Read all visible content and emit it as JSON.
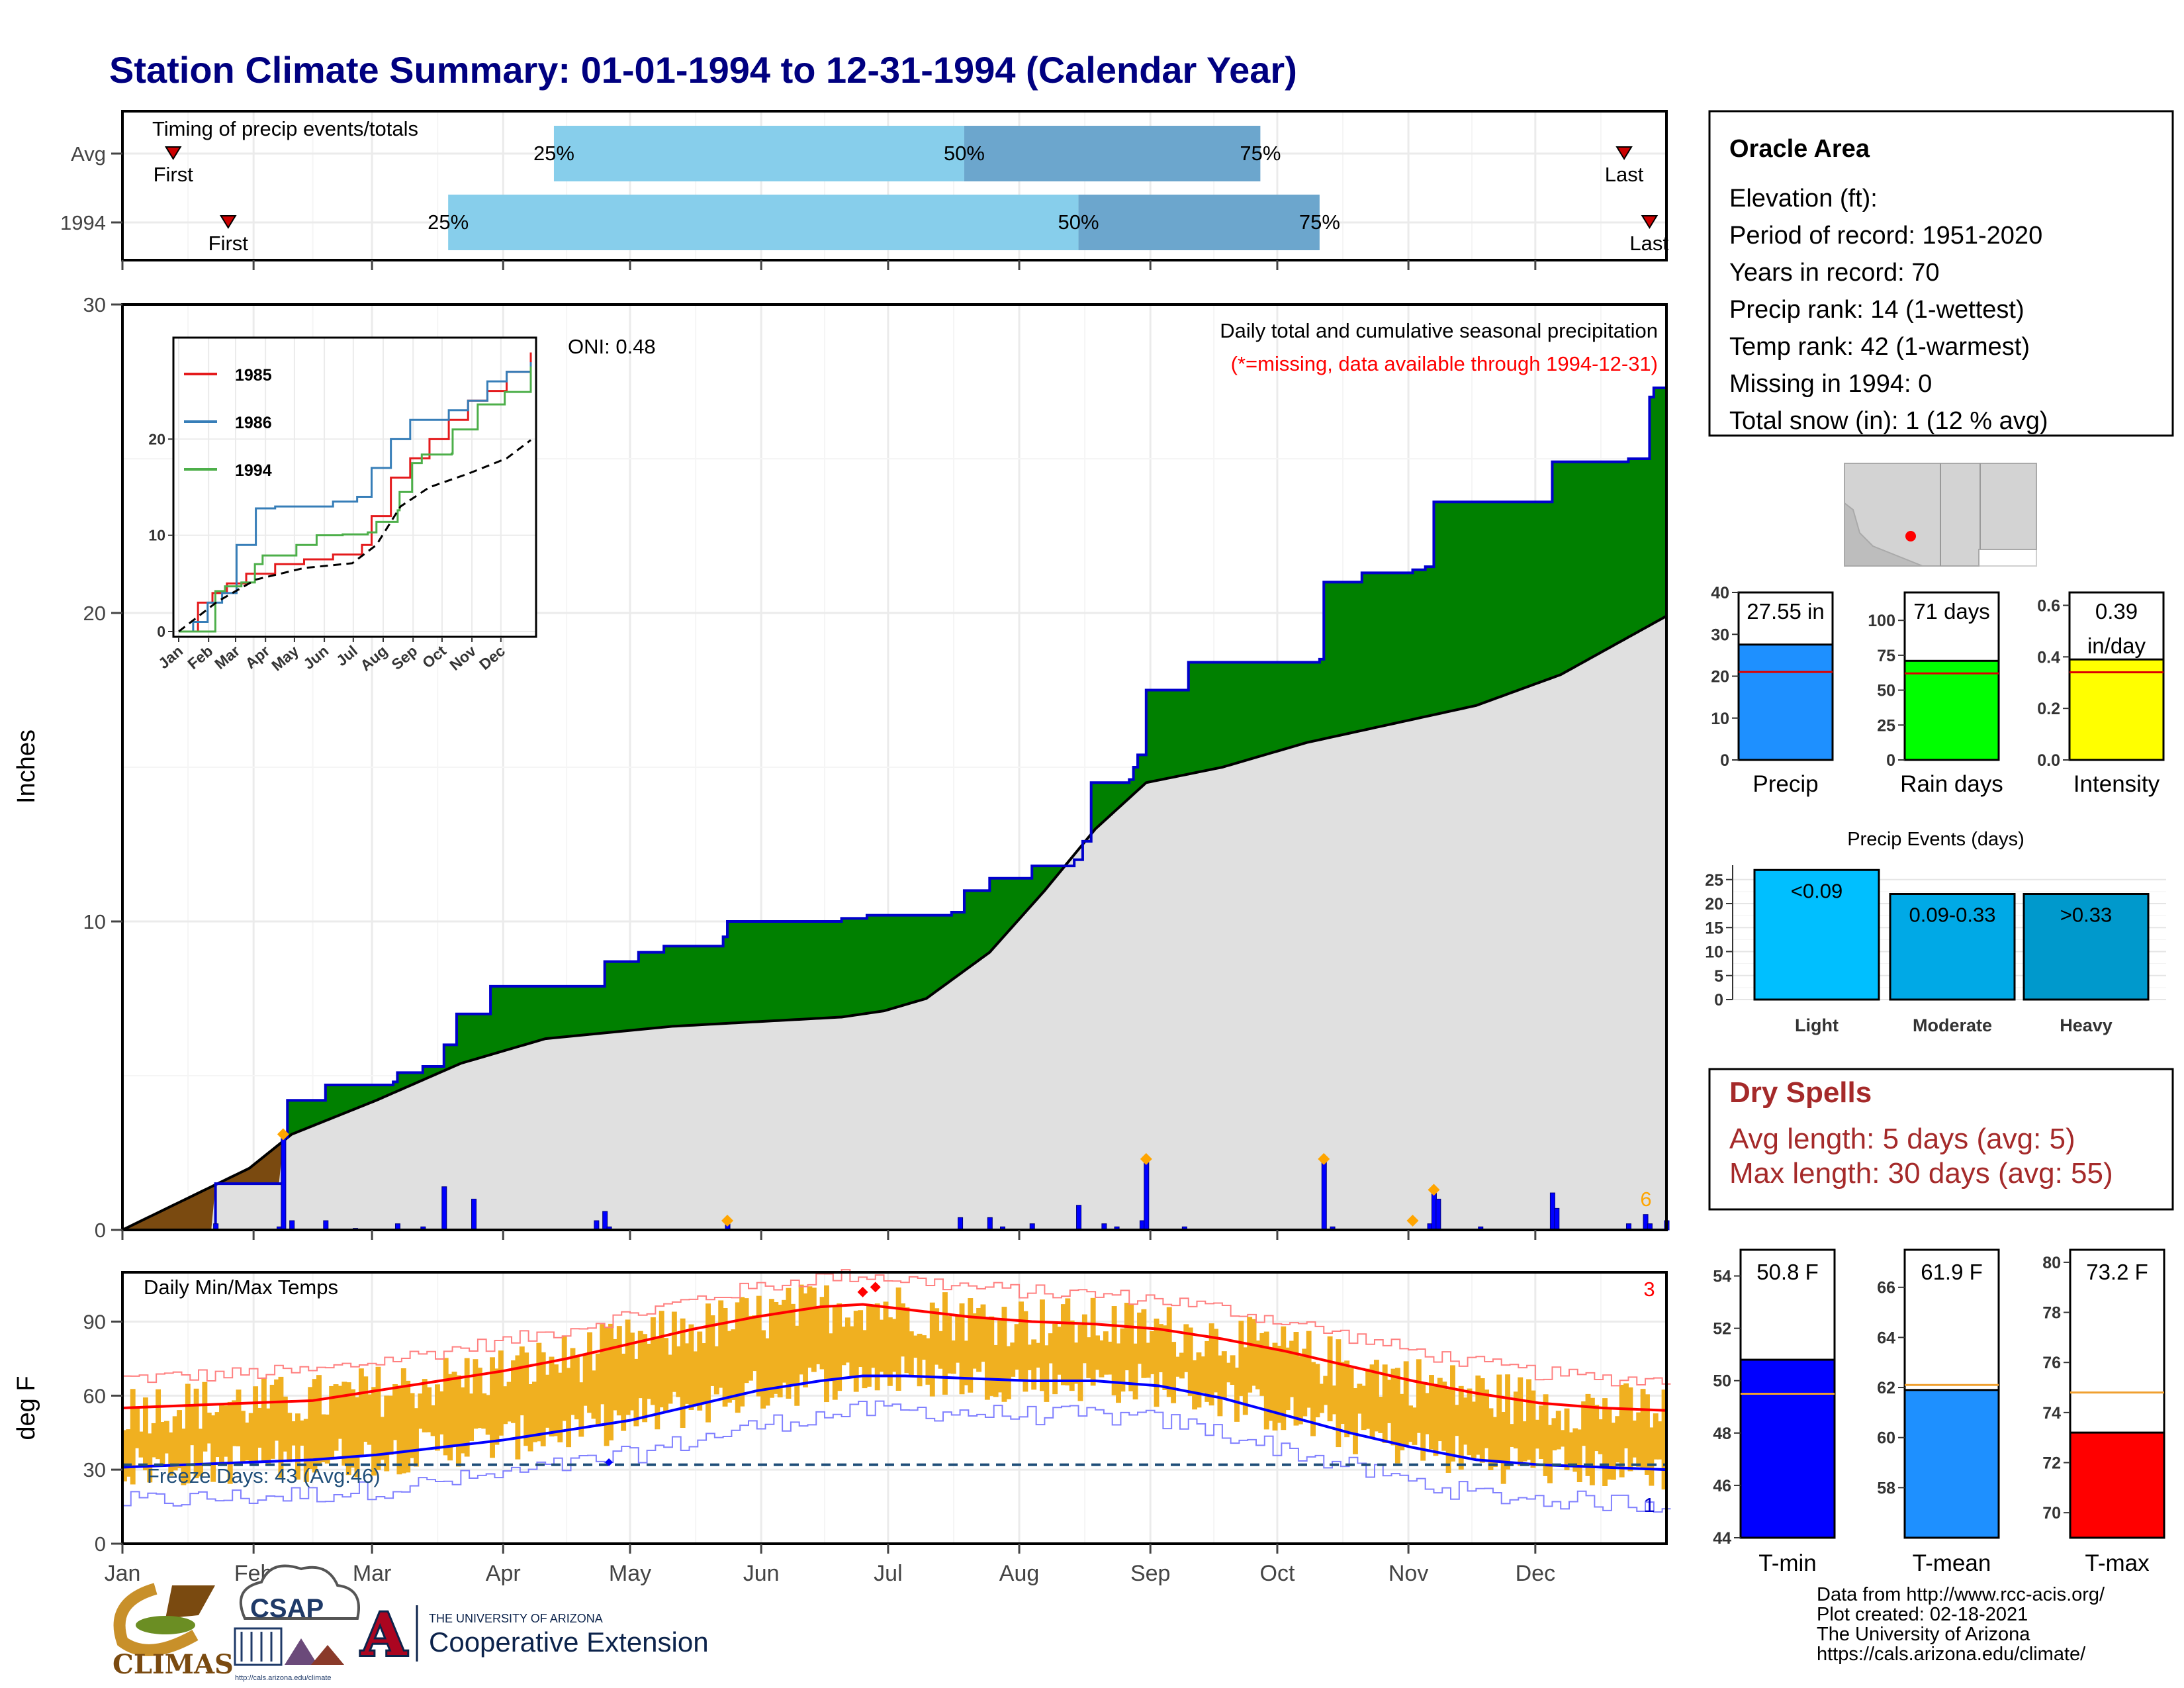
{
  "title": "Station Climate Summary: 01-01-1994 to 12-31-1994 (Calendar Year)",
  "colors": {
    "title": "#000080",
    "precip_green": "#008000",
    "cum_blue": "#0000cc",
    "avg_gray": "#e0e0e0",
    "brown": "#7a4a10",
    "timing_light": "#87ceeb",
    "timing_dark": "#6ca6cd",
    "temp_orange": "#f0b020",
    "red": "#ff0000",
    "dryspell": "#a52a2a"
  },
  "timing": {
    "panel_label": "Timing of precip events/totals",
    "rows": [
      {
        "name": "Avg",
        "first": "First",
        "last": "Last",
        "p25": "25%",
        "p50": "50%",
        "p75": "75%",
        "first_day": 12,
        "last_day": 355,
        "p25_day": 102,
        "p50_day": 199,
        "p75_day": 269
      },
      {
        "name": "1994",
        "first": "First",
        "last": "Last",
        "p25": "25%",
        "p50": "50%",
        "p75": "75%",
        "first_day": 25,
        "last_day": 361,
        "p25_day": 77,
        "p50_day": 226,
        "p75_day": 283
      }
    ]
  },
  "precip": {
    "ylabel": "Inches",
    "yticks": [
      "0",
      "10",
      "20",
      "30"
    ],
    "ylim": [
      0,
      30
    ],
    "oni": "ONI: 0.48",
    "note1": "Daily total and cumulative seasonal precipitation",
    "note2": "(*=missing, data available through 1994-12-31)",
    "missing_count": "6",
    "cumulative_1994": [
      [
        0,
        0
      ],
      [
        22,
        1.5
      ],
      [
        38,
        2.1
      ],
      [
        38,
        3.0
      ],
      [
        39,
        4.2
      ],
      [
        48,
        4.7
      ],
      [
        64,
        4.8
      ],
      [
        65,
        5.1
      ],
      [
        71,
        5.3
      ],
      [
        76,
        5.4
      ],
      [
        76,
        6.0
      ],
      [
        79,
        7.0
      ],
      [
        87,
        7.9
      ],
      [
        112,
        7.9
      ],
      [
        114,
        8.7
      ],
      [
        122,
        9.0
      ],
      [
        128,
        9.2
      ],
      [
        140,
        9.2
      ],
      [
        142,
        9.5
      ],
      [
        143,
        10.0
      ],
      [
        170,
        10.1
      ],
      [
        176,
        10.2
      ],
      [
        196,
        10.3
      ],
      [
        199,
        10.3
      ],
      [
        199,
        11.0
      ],
      [
        205,
        11.0
      ],
      [
        205,
        11.4
      ],
      [
        212,
        11.4
      ],
      [
        215,
        11.8
      ],
      [
        225,
        12.0
      ],
      [
        227,
        12.6
      ],
      [
        229,
        14.5
      ],
      [
        238,
        14.6
      ],
      [
        239,
        15.0
      ],
      [
        240,
        15.4
      ],
      [
        242,
        17.5
      ],
      [
        252,
        18.4
      ],
      [
        283,
        18.5
      ],
      [
        284,
        21.0
      ],
      [
        293,
        21.3
      ],
      [
        305,
        21.4
      ],
      [
        308,
        21.5
      ],
      [
        310,
        23.6
      ],
      [
        335,
        23.6
      ],
      [
        338,
        24.9
      ],
      [
        356,
        25.0
      ],
      [
        361,
        27.0
      ],
      [
        362,
        27.3
      ],
      [
        365,
        27.55
      ]
    ],
    "cumulative_avg": [
      [
        0,
        0
      ],
      [
        30,
        2.0
      ],
      [
        40,
        3.1
      ],
      [
        60,
        4.2
      ],
      [
        80,
        5.4
      ],
      [
        100,
        6.2
      ],
      [
        130,
        6.6
      ],
      [
        170,
        6.9
      ],
      [
        180,
        7.1
      ],
      [
        190,
        7.5
      ],
      [
        205,
        9.0
      ],
      [
        218,
        11.0
      ],
      [
        230,
        13.0
      ],
      [
        242,
        14.5
      ],
      [
        260,
        15.0
      ],
      [
        280,
        15.8
      ],
      [
        300,
        16.4
      ],
      [
        320,
        17.0
      ],
      [
        340,
        18.0
      ],
      [
        365,
        19.9
      ]
    ],
    "daily_events": [
      [
        22,
        0.2
      ],
      [
        37,
        0.1
      ],
      [
        38,
        3.0
      ],
      [
        40,
        0.3
      ],
      [
        48,
        0.3
      ],
      [
        55,
        0.05
      ],
      [
        65,
        0.2
      ],
      [
        71,
        0.1
      ],
      [
        76,
        1.4
      ],
      [
        83,
        1.0
      ],
      [
        112,
        0.3
      ],
      [
        114,
        0.6
      ],
      [
        115,
        0.1
      ],
      [
        143,
        0.3
      ],
      [
        198,
        0.4
      ],
      [
        205,
        0.4
      ],
      [
        208,
        0.1
      ],
      [
        215,
        0.2
      ],
      [
        226,
        0.8
      ],
      [
        232,
        0.2
      ],
      [
        235,
        0.1
      ],
      [
        241,
        0.3
      ],
      [
        242,
        2.2
      ],
      [
        251,
        0.1
      ],
      [
        284,
        2.3
      ],
      [
        286,
        0.1
      ],
      [
        309,
        0.2
      ],
      [
        310,
        1.2
      ],
      [
        311,
        1.0
      ],
      [
        321,
        0.1
      ],
      [
        338,
        1.2
      ],
      [
        339,
        0.7
      ],
      [
        356,
        0.2
      ],
      [
        360,
        0.5
      ],
      [
        361,
        0.2
      ],
      [
        365,
        0.3
      ]
    ],
    "event_markers": [
      [
        38,
        3.1
      ],
      [
        143,
        0.3
      ],
      [
        242,
        2.3
      ],
      [
        284,
        2.3
      ],
      [
        305,
        0.3
      ],
      [
        310,
        1.3
      ]
    ]
  },
  "inset": {
    "legend": [
      {
        "name": "1985",
        "color": "#e41a1c"
      },
      {
        "name": "1986",
        "color": "#377eb8"
      },
      {
        "name": "1994",
        "color": "#4daf4a"
      }
    ],
    "yticks": [
      "0",
      "10",
      "20"
    ],
    "xticks": [
      "Jan",
      "Feb",
      "Mar",
      "Apr",
      "May",
      "Jun",
      "Jul",
      "Aug",
      "Sep",
      "Oct",
      "Nov",
      "Dec"
    ],
    "series_1985": [
      [
        0,
        0
      ],
      [
        20,
        3
      ],
      [
        35,
        4
      ],
      [
        50,
        5
      ],
      [
        70,
        6
      ],
      [
        100,
        7
      ],
      [
        130,
        7.5
      ],
      [
        160,
        8
      ],
      [
        190,
        9
      ],
      [
        200,
        12
      ],
      [
        220,
        16
      ],
      [
        240,
        18
      ],
      [
        260,
        20
      ],
      [
        280,
        22
      ],
      [
        300,
        24
      ],
      [
        320,
        25
      ],
      [
        340,
        27
      ],
      [
        365,
        29
      ]
    ],
    "series_1986": [
      [
        0,
        0
      ],
      [
        15,
        1
      ],
      [
        30,
        3
      ],
      [
        45,
        4
      ],
      [
        60,
        9
      ],
      [
        80,
        12.8
      ],
      [
        100,
        13
      ],
      [
        130,
        13
      ],
      [
        160,
        13.5
      ],
      [
        185,
        14
      ],
      [
        200,
        17
      ],
      [
        220,
        20
      ],
      [
        240,
        22
      ],
      [
        260,
        22
      ],
      [
        280,
        23
      ],
      [
        300,
        24
      ],
      [
        320,
        26
      ],
      [
        340,
        27
      ],
      [
        365,
        28
      ]
    ],
    "series_1994": [
      [
        0,
        0
      ],
      [
        38,
        4.2
      ],
      [
        48,
        4.7
      ],
      [
        65,
        5.1
      ],
      [
        79,
        7.0
      ],
      [
        87,
        7.9
      ],
      [
        112,
        7.9
      ],
      [
        122,
        9.0
      ],
      [
        143,
        10.0
      ],
      [
        170,
        10.1
      ],
      [
        196,
        10.3
      ],
      [
        205,
        11.4
      ],
      [
        227,
        12.6
      ],
      [
        229,
        14.5
      ],
      [
        242,
        17.5
      ],
      [
        252,
        18.4
      ],
      [
        283,
        18.5
      ],
      [
        284,
        21.0
      ],
      [
        310,
        23.6
      ],
      [
        338,
        24.9
      ],
      [
        365,
        27.55
      ]
    ],
    "series_avg": [
      [
        0,
        0
      ],
      [
        40,
        3.1
      ],
      [
        80,
        5.4
      ],
      [
        130,
        6.6
      ],
      [
        180,
        7.1
      ],
      [
        205,
        9.0
      ],
      [
        230,
        13.0
      ],
      [
        260,
        15.0
      ],
      [
        300,
        16.4
      ],
      [
        340,
        18.0
      ],
      [
        365,
        19.9
      ]
    ],
    "ylim": [
      0,
      30
    ]
  },
  "temps": {
    "ylabel": "deg F",
    "panel_label": "Daily Min/Max Temps",
    "freeze": "Freeze Days: 43 (Avg:46)",
    "missing_hi": "3",
    "missing_lo": "1",
    "yticks": [
      "0",
      "30",
      "60",
      "90"
    ],
    "ylim": [
      0,
      110
    ],
    "normal_max": [
      [
        0,
        55
      ],
      [
        15,
        56
      ],
      [
        30,
        57
      ],
      [
        45,
        58
      ],
      [
        60,
        62
      ],
      [
        75,
        66
      ],
      [
        90,
        70
      ],
      [
        105,
        75
      ],
      [
        120,
        81
      ],
      [
        135,
        87
      ],
      [
        150,
        92
      ],
      [
        165,
        96
      ],
      [
        175,
        97
      ],
      [
        185,
        95
      ],
      [
        200,
        92
      ],
      [
        215,
        90
      ],
      [
        230,
        89
      ],
      [
        245,
        87
      ],
      [
        260,
        83
      ],
      [
        275,
        78
      ],
      [
        290,
        72
      ],
      [
        305,
        66
      ],
      [
        320,
        61
      ],
      [
        335,
        57
      ],
      [
        350,
        55
      ],
      [
        365,
        54
      ]
    ],
    "normal_min": [
      [
        0,
        31
      ],
      [
        15,
        32
      ],
      [
        30,
        33
      ],
      [
        45,
        34
      ],
      [
        60,
        36
      ],
      [
        75,
        39
      ],
      [
        90,
        42
      ],
      [
        105,
        46
      ],
      [
        120,
        50
      ],
      [
        135,
        56
      ],
      [
        150,
        62
      ],
      [
        165,
        66
      ],
      [
        175,
        68
      ],
      [
        185,
        68
      ],
      [
        200,
        67
      ],
      [
        215,
        66
      ],
      [
        230,
        66
      ],
      [
        245,
        64
      ],
      [
        260,
        59
      ],
      [
        275,
        52
      ],
      [
        290,
        45
      ],
      [
        305,
        39
      ],
      [
        320,
        34
      ],
      [
        335,
        32
      ],
      [
        350,
        31
      ],
      [
        365,
        30
      ]
    ],
    "freeze_line": 32
  },
  "months": [
    "Jan",
    "Feb",
    "Mar",
    "Apr",
    "May",
    "Jun",
    "Jul",
    "Aug",
    "Sep",
    "Oct",
    "Nov",
    "Dec"
  ],
  "station": {
    "name": "Oracle Area",
    "lines": [
      "Elevation (ft):",
      "Period of record: 1951-2020",
      "Years in record: 70",
      "Precip rank: 14 (1-wettest)",
      "Temp rank: 42 (1-warmest)",
      "Missing in 1994: 0",
      "Total snow (in): 1 (12 % avg)"
    ]
  },
  "small_bars": [
    {
      "label": "Precip",
      "value_text": "27.55 in",
      "value": 27.55,
      "avg": 21,
      "ymax": 40,
      "ticks": [
        "0",
        "10",
        "20",
        "30",
        "40"
      ],
      "color": "#1e90ff"
    },
    {
      "label": "Rain days",
      "value_text": "71 days",
      "value": 71,
      "avg": 62,
      "ymax": 120,
      "ticks": [
        "0",
        "25",
        "50",
        "75",
        "100"
      ],
      "color": "#00ff00"
    },
    {
      "label": "Intensity",
      "value_text": "0.39",
      "value_text2": "in/day",
      "value": 0.39,
      "avg": 0.34,
      "ymax": 0.65,
      "ticks": [
        "0.0",
        "0.2",
        "0.4",
        "0.6"
      ],
      "color": "#ffff00"
    }
  ],
  "events": {
    "title": "Precip Events (days)",
    "ticks": [
      "0",
      "5",
      "10",
      "15",
      "20",
      "25"
    ],
    "bars": [
      {
        "cat": "Light",
        "label": "<0.09",
        "value": 27,
        "color": "#00bfff"
      },
      {
        "cat": "Moderate",
        "label": "0.09-0.33",
        "value": 22,
        "color": "#00a9e6"
      },
      {
        "cat": "Heavy",
        "label": ">0.33",
        "value": 22,
        "color": "#0099cc"
      }
    ],
    "ymax": 28
  },
  "dry_spells": {
    "title": "Dry Spells",
    "lines": [
      "Avg length: 5 days (avg: 5)",
      "Max length: 30 days (avg: 55)"
    ]
  },
  "temp_bars": [
    {
      "label": "T-min",
      "value_text": "50.8 F",
      "value": 50.8,
      "avg": 49.5,
      "ymin": 44,
      "ymax": 55,
      "ticks": [
        "44",
        "46",
        "48",
        "50",
        "52",
        "54"
      ],
      "color": "#0000ff"
    },
    {
      "label": "T-mean",
      "value_text": "61.9 F",
      "value": 61.9,
      "avg": 62.1,
      "ymin": 56,
      "ymax": 67.5,
      "ticks": [
        "58",
        "60",
        "62",
        "64",
        "66"
      ],
      "color": "#1e90ff"
    },
    {
      "label": "T-max",
      "value_text": "73.2 F",
      "value": 73.2,
      "avg": 74.8,
      "ymin": 69,
      "ymax": 80.5,
      "ticks": [
        "70",
        "72",
        "74",
        "76",
        "78",
        "80"
      ],
      "color": "#ff0000"
    }
  ],
  "credits": [
    "Data from http://www.rcc-acis.org/",
    "Plot created: 02-18-2021",
    "The University of Arizona",
    "https://cals.arizona.edu/climate/"
  ],
  "logos": {
    "climas": "CLIMAS",
    "csap": "CSAP",
    "csap_url": "http://cals.arizona.edu/climate",
    "ua_line1": "THE UNIVERSITY OF ARIZONA",
    "ua_line2": "Cooperative Extension",
    "ua_letter": "A"
  }
}
